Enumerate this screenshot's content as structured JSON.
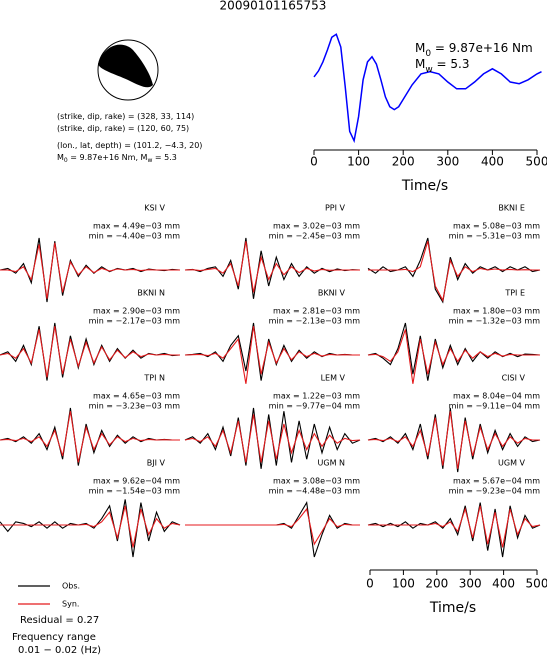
{
  "title": "20090101165753",
  "mechanism": [
    {
      "parts": [
        "(strike, dip, rake) = (328, 33, 114)"
      ]
    },
    {
      "parts": [
        "(strike, dip, rake) = (120, 60, 75)"
      ]
    },
    {
      "parts": [
        "(lon., lat, depth) = (101.2, −4.3, 20)"
      ]
    },
    {
      "parts": [
        "M",
        "0",
        " = 9.87e+16 Nm, M",
        "w",
        " = 5.3"
      ]
    }
  ],
  "legend": [
    {
      "name": "Obs.",
      "color": "#000000"
    },
    {
      "name": "Syn.",
      "color": "#e41a1c"
    }
  ],
  "residual": "Residual = 0.27",
  "frequency": [
    "Frequency range",
    "0.01 − 0.02 (Hz)"
  ],
  "time_axis": {
    "xlim": [
      0,
      510
    ],
    "xticks": [
      0,
      100,
      200,
      300,
      400,
      500
    ],
    "xlabel": "Time/s"
  },
  "chart_data": [
    {
      "type": "line",
      "xlabel": "Time/s",
      "annotations": [
        {
          "parts": [
            "M",
            "0",
            " = 9.87e+16 Nm"
          ]
        },
        {
          "parts": [
            "M",
            "w",
            " = 5.3"
          ]
        }
      ],
      "x": [
        0,
        10,
        20,
        30,
        40,
        50,
        60,
        70,
        80,
        90,
        100,
        110,
        120,
        130,
        140,
        150,
        160,
        170,
        180,
        190,
        200,
        220,
        240,
        260,
        280,
        300,
        320,
        340,
        360,
        380,
        400,
        420,
        440,
        460,
        480,
        500,
        510
      ],
      "values": [
        0,
        0.14,
        0.35,
        0.63,
        0.93,
        1.0,
        0.7,
        -0.23,
        -1.28,
        -1.5,
        -0.93,
        -0.07,
        0.35,
        0.47,
        0.3,
        -0.07,
        -0.47,
        -0.7,
        -0.77,
        -0.7,
        -0.53,
        -0.19,
        0.07,
        0.12,
        0.07,
        -0.12,
        -0.28,
        -0.28,
        -0.12,
        0.07,
        0.19,
        0.07,
        -0.12,
        -0.16,
        -0.07,
        0.07,
        0.12
      ],
      "color": "#0000ff",
      "xlim": [
        0,
        510
      ],
      "ylim": [
        -1.6,
        1.1
      ],
      "xticks": [
        0,
        100,
        200,
        300,
        400,
        500
      ]
    },
    {
      "type": "waveform",
      "title": "KSI V",
      "max_label": "max = 4.49e−03 mm",
      "min_label": "min = −4.40e−03 mm",
      "series": [
        {
          "color": "#000000",
          "values": [
            0,
            0.05,
            -0.1,
            0.2,
            -0.4,
            1,
            -1,
            0.9,
            -0.8,
            0.3,
            -0.2,
            0.15,
            -0.1,
            0.1,
            -0.05,
            0.05,
            0,
            0.05,
            -0.05,
            0.03,
            0,
            -0.02,
            0.02,
            0
          ]
        },
        {
          "color": "#e41a1c",
          "values": [
            0,
            0,
            -0.05,
            0.1,
            -0.3,
            0.8,
            -0.9,
            0.85,
            -0.7,
            0.25,
            -0.15,
            0.1,
            -0.08,
            0.05,
            -0.03,
            0.03,
            0,
            0.02,
            -0.02,
            0.01,
            0,
            0,
            0,
            0
          ]
        }
      ]
    },
    {
      "type": "waveform",
      "title": "PPI V",
      "max_label": "max = 3.02e−03 mm",
      "min_label": "min = −2.45e−03 mm",
      "series": [
        {
          "color": "#000000",
          "values": [
            0,
            0.02,
            -0.05,
            0.05,
            0.1,
            -0.2,
            0.3,
            -0.6,
            1,
            -0.9,
            0.6,
            -0.5,
            0.4,
            -0.3,
            0.2,
            -0.2,
            0.1,
            -0.1,
            0.05,
            -0.05,
            0.03,
            -0.02,
            0.01,
            0
          ]
        },
        {
          "color": "#e41a1c",
          "values": [
            0,
            0.01,
            -0.02,
            0.02,
            0.05,
            -0.1,
            0.2,
            -0.5,
            0.9,
            -0.7,
            0.4,
            -0.3,
            0.2,
            -0.15,
            0.1,
            -0.08,
            0.05,
            -0.03,
            0.02,
            -0.01,
            0,
            0,
            0,
            0
          ]
        }
      ]
    },
    {
      "type": "waveform",
      "title": "BKNI E",
      "max_label": "max = 5.08e−03 mm",
      "min_label": "min = −5.31e−03 mm",
      "series": [
        {
          "color": "#000000",
          "values": [
            0.05,
            -0.1,
            0.1,
            -0.05,
            0,
            0.1,
            -0.2,
            0.3,
            1,
            -0.6,
            -1,
            0.4,
            -0.3,
            0.2,
            -0.1,
            0.1,
            0,
            0.1,
            -0.05,
            0.1,
            0,
            0.1,
            -0.05,
            0
          ]
        },
        {
          "color": "#e41a1c",
          "values": [
            0,
            0,
            0,
            0,
            0,
            0.02,
            -0.05,
            0.1,
            0.9,
            -0.5,
            -0.95,
            0.3,
            -0.2,
            0.1,
            -0.05,
            0.05,
            0,
            0.03,
            0,
            0.02,
            0,
            0.01,
            0,
            0
          ]
        }
      ]
    },
    {
      "type": "waveform",
      "title": "BKNI N",
      "max_label": "max = 2.90e−03 mm",
      "min_label": "min = −2.17e−03 mm",
      "series": [
        {
          "color": "#000000",
          "values": [
            0,
            0.1,
            -0.2,
            0.3,
            -0.3,
            0.9,
            -0.8,
            1,
            -0.7,
            0.6,
            -0.4,
            0.5,
            -0.3,
            0.3,
            -0.2,
            0.2,
            -0.1,
            0.15,
            -0.1,
            0.05,
            0,
            0.05,
            -0.02,
            0
          ]
        },
        {
          "color": "#e41a1c",
          "values": [
            0,
            0.05,
            -0.1,
            0.2,
            -0.25,
            0.8,
            -0.7,
            0.9,
            -0.6,
            0.5,
            -0.35,
            0.4,
            -0.25,
            0.25,
            -0.15,
            0.15,
            -0.08,
            0.1,
            -0.05,
            0.03,
            0,
            0.02,
            0,
            0
          ]
        }
      ]
    },
    {
      "type": "waveform",
      "title": "BKNI V",
      "max_label": "max = 2.81e−03 mm",
      "min_label": "min = −2.13e−03 mm",
      "series": [
        {
          "color": "#000000",
          "values": [
            0,
            0.02,
            0.05,
            -0.05,
            0.1,
            -0.2,
            0.3,
            0.6,
            -0.5,
            1,
            -0.8,
            0.5,
            -0.3,
            0.3,
            -0.2,
            0.15,
            -0.1,
            0.1,
            -0.05,
            0.05,
            0,
            0.02,
            0,
            0
          ]
        },
        {
          "color": "#e41a1c",
          "values": [
            0,
            0.01,
            0.02,
            -0.02,
            0.05,
            -0.1,
            0.2,
            0.5,
            -0.9,
            0.9,
            -0.6,
            0.4,
            -0.25,
            0.2,
            -0.15,
            0.1,
            -0.05,
            0.05,
            -0.03,
            0.02,
            0,
            0.01,
            0,
            0
          ]
        }
      ]
    },
    {
      "type": "waveform",
      "title": "TPI E",
      "max_label": "max = 1.80e−03 mm",
      "min_label": "min = −1.32e−03 mm",
      "series": [
        {
          "color": "#000000",
          "values": [
            0,
            0.05,
            -0.1,
            -0.3,
            0.2,
            1,
            -0.6,
            0.6,
            -0.8,
            0.5,
            -0.4,
            0.3,
            -0.3,
            0.2,
            -0.2,
            0.1,
            -0.1,
            0.1,
            -0.05,
            0.05,
            -0.05,
            0.03,
            0.02,
            0
          ]
        },
        {
          "color": "#e41a1c",
          "values": [
            0,
            0.02,
            -0.05,
            -0.2,
            0.1,
            0.8,
            -0.9,
            0.5,
            -0.6,
            0.4,
            -0.3,
            0.2,
            -0.2,
            0.15,
            -0.1,
            0.1,
            -0.05,
            0.05,
            -0.03,
            0.02,
            0,
            0,
            0,
            0
          ]
        }
      ]
    },
    {
      "type": "waveform",
      "title": "TPI N",
      "max_label": "max = 4.65e−03 mm",
      "min_label": "min = −3.23e−03 mm",
      "series": [
        {
          "color": "#000000",
          "values": [
            0,
            0.05,
            -0.05,
            0.1,
            -0.1,
            0.2,
            -0.3,
            0.4,
            -0.6,
            1,
            -0.8,
            0.5,
            -0.4,
            0.3,
            -0.2,
            0.15,
            -0.1,
            0.1,
            -0.05,
            0.05,
            0,
            0.02,
            0,
            0
          ]
        },
        {
          "color": "#e41a1c",
          "values": [
            0,
            0.02,
            -0.02,
            0.05,
            -0.05,
            0.1,
            -0.2,
            0.3,
            -0.5,
            0.9,
            -0.7,
            0.4,
            -0.3,
            0.2,
            -0.15,
            0.1,
            -0.05,
            0.05,
            -0.02,
            0.02,
            0,
            0.01,
            0,
            0
          ]
        }
      ]
    },
    {
      "type": "waveform",
      "title": "LEM V",
      "max_label": "max = 1.22e−03 mm",
      "min_label": "min = −9.77e−04 mm",
      "series": [
        {
          "color": "#000000",
          "values": [
            0,
            0.1,
            -0.1,
            0.2,
            -0.3,
            0.4,
            -0.5,
            0.7,
            -0.8,
            1,
            -0.9,
            0.8,
            -0.8,
            0.9,
            -0.7,
            0.6,
            -0.6,
            0.5,
            -0.4,
            0.4,
            -0.3,
            0.2,
            -0.1,
            0
          ]
        },
        {
          "color": "#e41a1c",
          "values": [
            0,
            0.05,
            -0.05,
            0.1,
            -0.2,
            0.3,
            -0.4,
            0.6,
            -0.7,
            0.8,
            -0.7,
            0.6,
            -0.6,
            0.5,
            -0.4,
            0.3,
            -0.3,
            0.2,
            -0.2,
            0.15,
            -0.1,
            0.05,
            -0.02,
            0
          ]
        }
      ]
    },
    {
      "type": "waveform",
      "title": "CISI V",
      "max_label": "max = 8.04e−04 mm",
      "min_label": "min = −9.11e−04 mm",
      "series": [
        {
          "color": "#000000",
          "values": [
            0,
            0.05,
            -0.05,
            0.1,
            -0.1,
            0.2,
            -0.3,
            0.5,
            -0.6,
            0.8,
            -0.9,
            1,
            -1,
            0.7,
            -0.6,
            0.5,
            -0.4,
            0.3,
            -0.3,
            0.2,
            -0.2,
            0.1,
            -0.05,
            0
          ]
        },
        {
          "color": "#e41a1c",
          "values": [
            0,
            0.02,
            -0.02,
            0.05,
            -0.05,
            0.1,
            -0.2,
            0.3,
            -0.5,
            0.7,
            -0.8,
            0.9,
            -0.9,
            0.6,
            -0.5,
            0.4,
            -0.3,
            0.2,
            -0.2,
            0.1,
            -0.1,
            0.05,
            0,
            0
          ]
        }
      ]
    },
    {
      "type": "waveform",
      "title": "BJI V",
      "max_label": "max = 9.62e−04 mm",
      "min_label": "min = −1.54e−03 mm",
      "series": [
        {
          "color": "#000000",
          "values": [
            0.1,
            -0.2,
            0.1,
            0.05,
            -0.05,
            0.1,
            -0.1,
            0.1,
            -0.1,
            0.05,
            0,
            0.05,
            -0.1,
            0.2,
            0.6,
            -0.5,
            0.8,
            -1,
            0.7,
            -0.5,
            0.4,
            -0.2,
            0.1,
            0
          ]
        },
        {
          "color": "#e41a1c",
          "values": [
            0,
            0,
            0,
            0,
            0,
            0,
            0,
            0,
            0,
            0,
            0,
            0.02,
            -0.05,
            0.1,
            0.4,
            -0.4,
            0.6,
            -0.7,
            0.5,
            -0.3,
            0.2,
            -0.1,
            0.05,
            0
          ]
        }
      ]
    },
    {
      "type": "waveform",
      "title": "UGM N",
      "max_label": "max = 3.08e−03 mm",
      "min_label": "min = −4.48e−03 mm",
      "series": [
        {
          "color": "#000000",
          "values": [
            0,
            0,
            0,
            0,
            0,
            0,
            0,
            0,
            0,
            0,
            0,
            0,
            0,
            0.05,
            -0.1,
            0.3,
            0.7,
            -1,
            -0.3,
            0.3,
            -0.1,
            0.05,
            0,
            0
          ]
        },
        {
          "color": "#e41a1c",
          "values": [
            0,
            0,
            0,
            0,
            0,
            0,
            0,
            0,
            0,
            0,
            0,
            0,
            0,
            0.02,
            -0.05,
            0.2,
            0.5,
            -0.6,
            -0.2,
            0.2,
            -0.05,
            0.02,
            0,
            0
          ]
        }
      ]
    },
    {
      "type": "waveform",
      "title": "UGM V",
      "max_label": "max = 5.67e−04 mm",
      "min_label": "min = −9.23e−04 mm",
      "series": [
        {
          "color": "#000000",
          "values": [
            0,
            0.05,
            -0.05,
            0.05,
            -0.05,
            0.1,
            -0.1,
            0.05,
            0,
            0.1,
            -0.1,
            0.2,
            -0.3,
            0.6,
            -0.5,
            0.7,
            -0.8,
            0.5,
            -1,
            0.6,
            -0.4,
            0.3,
            -0.1,
            0
          ]
        },
        {
          "color": "#e41a1c",
          "values": [
            0,
            0,
            0,
            0,
            0,
            0,
            0,
            0,
            0,
            0.05,
            -0.05,
            0.1,
            -0.2,
            0.5,
            -0.4,
            0.6,
            -0.6,
            0.4,
            -0.7,
            0.5,
            -0.3,
            0.2,
            -0.05,
            0
          ]
        }
      ]
    }
  ]
}
